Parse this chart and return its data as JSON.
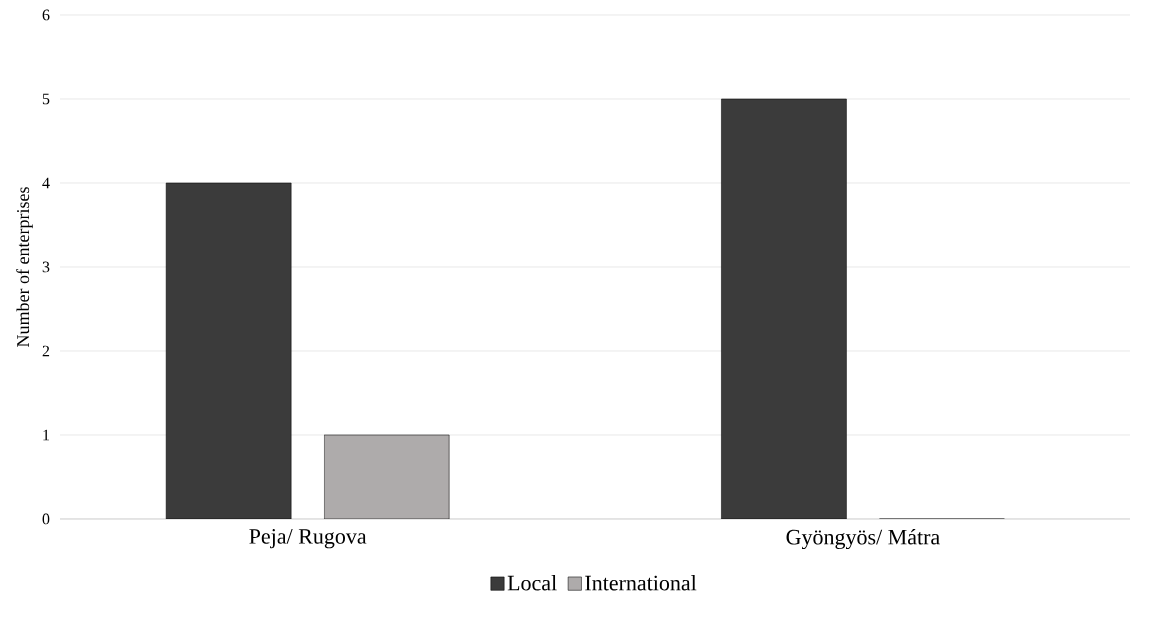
{
  "chart_data": {
    "type": "bar",
    "ylabel": "Number of enterprises",
    "categories": [
      "Peja/ Rugova",
      "Gyöngyös/ Mátra"
    ],
    "series": [
      {
        "name": "Local",
        "color": "#3b3b3b",
        "values": [
          4,
          5
        ]
      },
      {
        "name": "International",
        "color": "#aeabab",
        "values": [
          1,
          0
        ]
      }
    ],
    "ylim": [
      0,
      6
    ],
    "yticks": [
      0,
      1,
      2,
      3,
      4,
      5,
      6
    ],
    "grid": "y",
    "legend": "bottom"
  }
}
